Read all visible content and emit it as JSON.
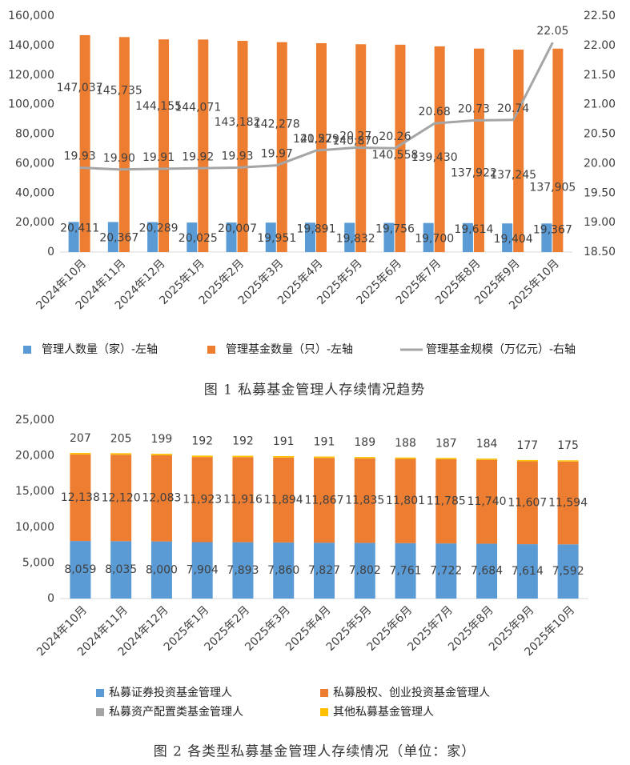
{
  "chart_data": [
    {
      "type": "bar",
      "caption": "图 1 私募基金管理人存续情况趋势",
      "categories": [
        "2024年10月",
        "2024年11月",
        "2024年12月",
        "2025年1月",
        "2025年2月",
        "2025年3月",
        "2025年4月",
        "2025年5月",
        "2025年6月",
        "2025年7月",
        "2025年8月",
        "2025年9月",
        "2025年10月"
      ],
      "series": [
        {
          "name": "管理人数量（家）-左轴",
          "color": "#5b9bd5",
          "values": [
            20411,
            20367,
            20289,
            20025,
            20007,
            19951,
            19891,
            19832,
            19756,
            19700,
            19614,
            19404,
            19367
          ],
          "value_labels": [
            "20,411",
            "20,367",
            "20,289",
            "20,025",
            "20,007",
            "19,951",
            "19,891",
            "19,832",
            "19,756",
            "19,700",
            "19,614",
            "19,404",
            "19,367"
          ]
        },
        {
          "name": "管理基金数量（只）-左轴",
          "color": "#ed7d31",
          "values": [
            147037,
            145735,
            144155,
            144071,
            143182,
            142278,
            141579,
            140870,
            140558,
            139430,
            137922,
            137245,
            137905
          ],
          "value_labels": [
            "147,037",
            "145,735",
            "144,155",
            "144,071",
            "143,182",
            "142,278",
            "141,579",
            "140,870",
            "140,558",
            "139,430",
            "137,922",
            "137,245",
            "137,905"
          ]
        },
        {
          "name": "管理基金规模（万亿元）-右轴",
          "color": "#a5a5a5",
          "type": "line",
          "axis": "y2",
          "values": [
            19.93,
            19.9,
            19.91,
            19.92,
            19.93,
            19.97,
            20.22,
            20.27,
            20.26,
            20.68,
            20.73,
            20.74,
            22.05
          ],
          "value_labels": [
            "19.93",
            "19.90",
            "19.91",
            "19.92",
            "19.93",
            "19.97",
            "20.22",
            "20.27",
            "20.26",
            "20.68",
            "20.73",
            "20.74",
            "22.05"
          ]
        }
      ],
      "ylim": [
        0,
        160000
      ],
      "yticks": [
        0,
        {
          "value": 20000,
          "label": "20,000"
        },
        {
          "value": 40000,
          "label": "40,000"
        },
        {
          "value": 60000,
          "label": "60,000"
        },
        {
          "value": 80000,
          "label": "80,000"
        },
        {
          "value": 100000,
          "label": "100,000"
        },
        {
          "value": 120000,
          "label": "120,000"
        },
        {
          "value": 140000,
          "label": "140,000"
        },
        {
          "value": 160000,
          "label": "160,000"
        }
      ],
      "y2lim": [
        18.5,
        22.5
      ],
      "y2ticks": [
        {
          "value": 18.5,
          "label": "18.50"
        },
        {
          "value": 19,
          "label": "19.00"
        },
        {
          "value": 19.5,
          "label": "19.50"
        },
        {
          "value": 20,
          "label": "20.00"
        },
        {
          "value": 20.5,
          "label": "20.50"
        },
        {
          "value": 21,
          "label": "21.00"
        },
        {
          "value": 21.5,
          "label": "21.50"
        },
        {
          "value": 22,
          "label": "22.00"
        },
        {
          "value": 22.5,
          "label": "22.50"
        }
      ]
    },
    {
      "type": "stacked_bar",
      "caption": "图 2 各类型私募基金管理人存续情况（单位：家）",
      "categories": [
        "2024年10月",
        "2024年11月",
        "2024年12月",
        "2025年1月",
        "2025年2月",
        "2025年3月",
        "2025年4月",
        "2025年5月",
        "2025年6月",
        "2025年7月",
        "2025年8月",
        "2025年9月",
        "2025年10月"
      ],
      "series": [
        {
          "name": "私募证券投资基金管理人",
          "color": "#5b9bd5",
          "values": [
            8059,
            8035,
            8000,
            7904,
            7893,
            7860,
            7827,
            7802,
            7761,
            7722,
            7684,
            7614,
            7592
          ],
          "value_labels": [
            "8,059",
            "8,035",
            "8,000",
            "7,904",
            "7,893",
            "7,860",
            "7,827",
            "7,802",
            "7,761",
            "7,722",
            "7,684",
            "7,614",
            "7,592"
          ]
        },
        {
          "name": "私募股权、创业投资基金管理人",
          "color": "#ed7d31",
          "values": [
            12138,
            12120,
            12083,
            11923,
            11916,
            11894,
            11867,
            11835,
            11801,
            11785,
            11740,
            11607,
            11594
          ],
          "value_labels": [
            "12,138",
            "12,120",
            "12,083",
            "11,923",
            "11,916",
            "11,894",
            "11,867",
            "11,835",
            "11,801",
            "11,785",
            "11,740",
            "11,607",
            "11,594"
          ]
        },
        {
          "name": "私募资产配置类基金管理人",
          "color": "#a5a5a5",
          "values": [
            7,
            7,
            7,
            6,
            6,
            6,
            6,
            6,
            6,
            6,
            6,
            6,
            6
          ]
        },
        {
          "name": "其他私募基金管理人",
          "color": "#ffc000",
          "values": [
            207,
            205,
            199,
            192,
            192,
            191,
            191,
            189,
            188,
            187,
            184,
            177,
            175
          ]
        }
      ],
      "ylim": [
        0,
        25000
      ],
      "yticks": [
        0,
        {
          "value": 5000,
          "label": "5,000"
        },
        {
          "value": 10000,
          "label": "10,000"
        },
        {
          "value": 15000,
          "label": "15,000"
        },
        {
          "value": 20000,
          "label": "20,000"
        },
        {
          "value": 25000,
          "label": "25,000"
        }
      ]
    }
  ]
}
